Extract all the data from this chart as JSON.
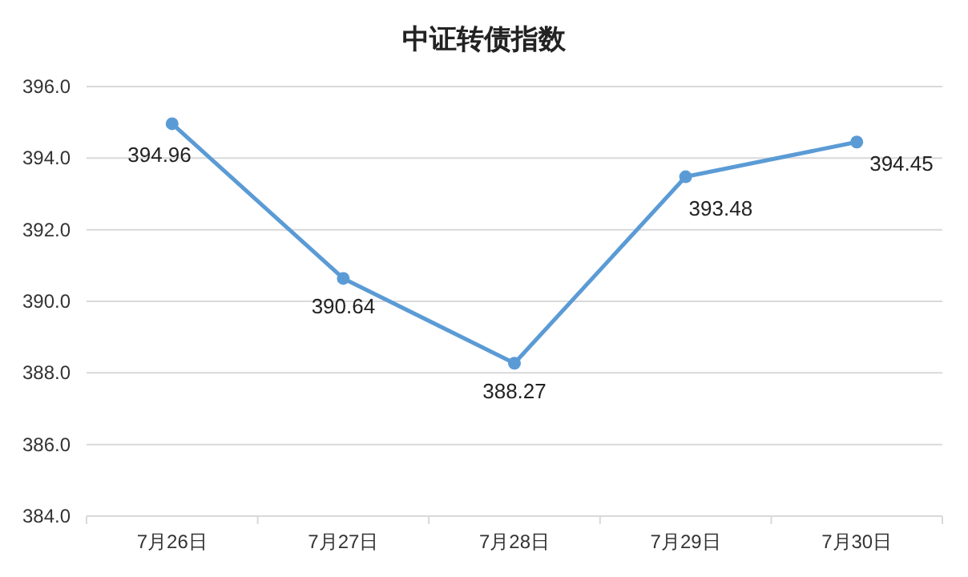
{
  "chart_data": {
    "type": "line",
    "title": "中证转债指数",
    "categories": [
      "7月26日",
      "7月27日",
      "7月28日",
      "7月29日",
      "7月30日"
    ],
    "series": [
      {
        "color": "#5b9bd5",
        "values": [
          394.96,
          390.64,
          388.27,
          393.48,
          394.45
        ]
      }
    ],
    "ylim": [
      384,
      396
    ],
    "yticks": [
      {
        "value": 384,
        "label": "384.0"
      },
      {
        "value": 386,
        "label": "386.0"
      },
      {
        "value": 388,
        "label": "388.0"
      },
      {
        "value": 390,
        "label": "390.0"
      },
      {
        "value": 392,
        "label": "392.0"
      },
      {
        "value": 394,
        "label": "394.0"
      },
      {
        "value": 396,
        "label": "396.0"
      }
    ],
    "grid": "y",
    "marker": "circle",
    "line_style": "solid",
    "data_labels": true
  }
}
